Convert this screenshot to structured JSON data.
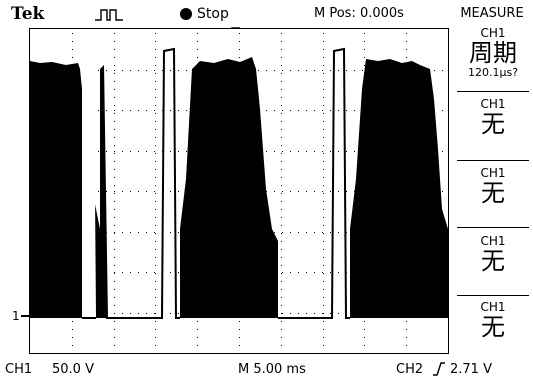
{
  "header": {
    "brand": "Tek",
    "trigger_icon": "pulse-trigger-icon",
    "status": "Stop",
    "m_pos": "M Pos: 0.000s"
  },
  "menu": {
    "title": "MEASURE",
    "items": [
      {
        "source": "CH1",
        "value": "周期",
        "sub": "120.1µs?"
      },
      {
        "source": "CH1",
        "value": "无"
      },
      {
        "source": "CH1",
        "value": "无"
      },
      {
        "source": "CH1",
        "value": "无"
      },
      {
        "source": "CH1",
        "value": "无"
      }
    ]
  },
  "screen": {
    "channel_marker": "1"
  },
  "footer": {
    "ch1_label": "CH1",
    "ch1_scale": "50.0 V",
    "timebase": "M 5.00 ms",
    "trigger_source": "CH2",
    "trigger_level": "2.71 V"
  }
}
